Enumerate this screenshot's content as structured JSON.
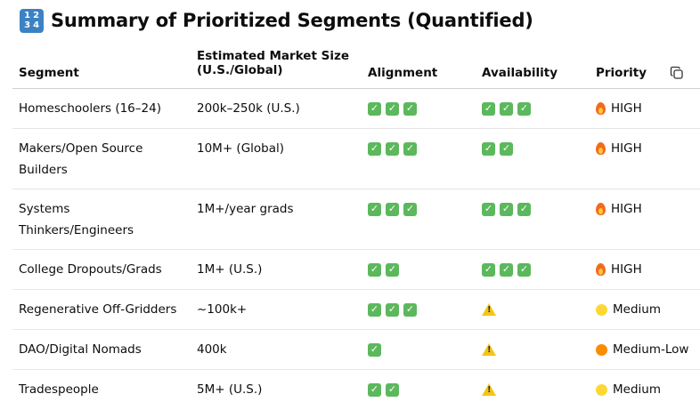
{
  "heading": {
    "icon_text": "1 2\n3 4",
    "title": "Summary of Prioritized Segments (Quantified)"
  },
  "table": {
    "headers": {
      "segment": "Segment",
      "market_size_line1": "Estimated Market Size",
      "market_size_line2": "(U.S./Global)",
      "alignment": "Alignment",
      "availability": "Availability",
      "priority": "Priority"
    },
    "rows": [
      {
        "segment_line1": "Homeschoolers (16–24)",
        "segment_line2": "",
        "market_size": "200k–250k (U.S.)",
        "alignment": 3,
        "availability": 3,
        "availability_warning": false,
        "priority_icon": "fire-icon",
        "priority": "HIGH"
      },
      {
        "segment_line1": "Makers/Open Source",
        "segment_line2": "Builders",
        "market_size": "10M+ (Global)",
        "alignment": 3,
        "availability": 2,
        "availability_warning": false,
        "priority_icon": "fire-icon",
        "priority": "HIGH"
      },
      {
        "segment_line1": "Systems",
        "segment_line2": "Thinkers/Engineers",
        "market_size": "1M+/year grads",
        "alignment": 3,
        "availability": 3,
        "availability_warning": false,
        "priority_icon": "fire-icon",
        "priority": "HIGH"
      },
      {
        "segment_line1": "College Dropouts/Grads",
        "segment_line2": "",
        "market_size": "1M+ (U.S.)",
        "alignment": 2,
        "availability": 3,
        "availability_warning": false,
        "priority_icon": "fire-icon",
        "priority": "HIGH"
      },
      {
        "segment_line1": "Regenerative Off-Gridders",
        "segment_line2": "",
        "market_size": "~100k+",
        "alignment": 3,
        "availability": 0,
        "availability_warning": true,
        "priority_icon": "yellow-circle-icon",
        "priority": "Medium"
      },
      {
        "segment_line1": "DAO/Digital Nomads",
        "segment_line2": "",
        "market_size": "400k",
        "alignment": 1,
        "availability": 0,
        "availability_warning": true,
        "priority_icon": "orange-circle-icon",
        "priority": "Medium-Low"
      },
      {
        "segment_line1": "Tradespeople",
        "segment_line2": "",
        "market_size": "5M+ (U.S.)",
        "alignment": 2,
        "availability": 0,
        "availability_warning": true,
        "priority_icon": "yellow-circle-icon",
        "priority": "Medium"
      }
    ]
  },
  "colors": {
    "check_green": "#5cb85c",
    "warning_yellow": "#f5c518",
    "flame_orange": "#f26b1d",
    "yellow_circle": "#fdd835",
    "orange_circle": "#fb8c00",
    "heading_icon_blue": "#3b82c4"
  },
  "icons": {
    "check": "check-mark-button-icon",
    "warning": "warning-icon",
    "copy": "copy-icon",
    "heading": "keycap-1234-icon"
  }
}
